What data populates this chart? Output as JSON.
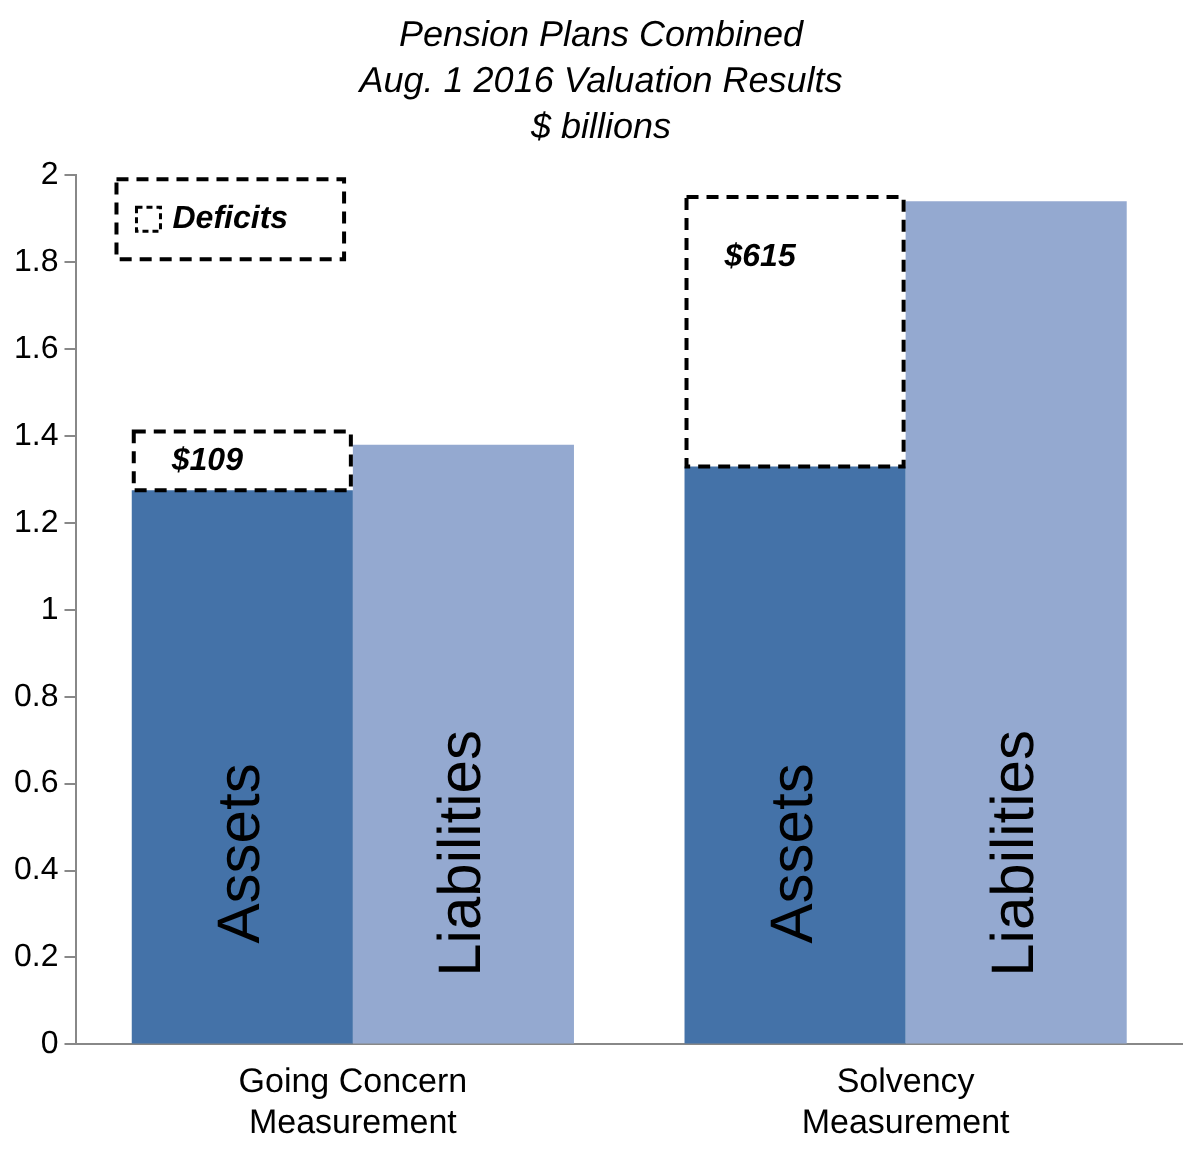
{
  "chart_data": {
    "type": "bar",
    "title": "Pension Plans Combined\nAug. 1 2016 Valuation Results\n$ billions",
    "categories": [
      "Going Concern Measurement",
      "Solvency Measurement"
    ],
    "series": [
      {
        "name": "Assets",
        "color": "#4472a8",
        "values": [
          1.275,
          1.33
        ]
      },
      {
        "name": "Deficits",
        "color": "#000000",
        "base": [
          1.275,
          1.33
        ],
        "values": [
          0.135,
          0.62
        ]
      },
      {
        "name": "Liabilities",
        "color": "#94a9d0",
        "values": [
          1.38,
          1.94
        ]
      }
    ],
    "ylim": [
      0,
      2
    ],
    "yticks": [
      0,
      0.2,
      0.4,
      0.6,
      0.8,
      1,
      1.2,
      1.4,
      1.6,
      1.8,
      2
    ],
    "grid": false,
    "legend": "top left",
    "annotations": [
      "$109",
      "$615"
    ]
  }
}
